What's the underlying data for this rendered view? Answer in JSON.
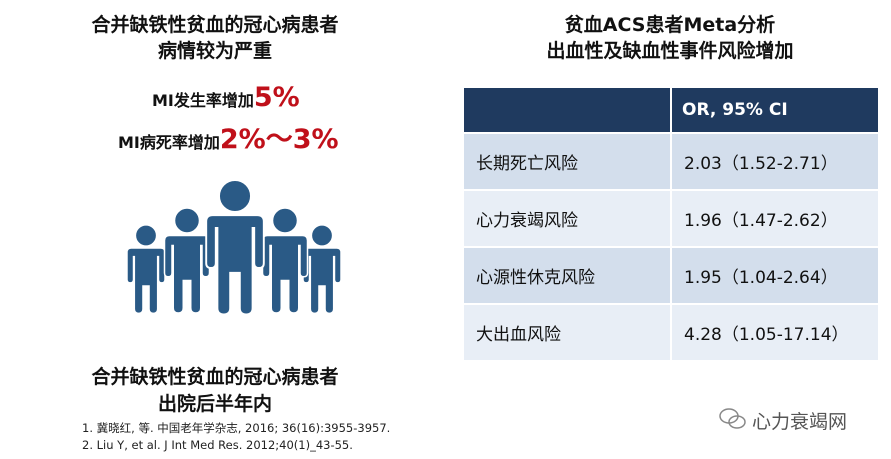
{
  "left": {
    "title": [
      "合并缺铁性贫血的冠心病患者",
      "病情较为严重"
    ],
    "stats": [
      {
        "label": "MI发生率增加",
        "value": "5%"
      },
      {
        "label": "MI病死率增加",
        "value": "2%～3%"
      }
    ],
    "caption": [
      "合并缺铁性贫血的冠心病患者",
      "出院后半年内"
    ],
    "references": [
      "1.   冀晓红, 等. 中国老年学杂志, 2016; 36(16):3955-3957.",
      "2.   Liu Y, et al.  J Int Med Res. 2012;40(1)_43-55."
    ]
  },
  "right": {
    "title": [
      "贫血ACS患者Meta分析",
      "出血性及缺血性事件风险增加"
    ],
    "table": {
      "header": "OR, 95% CI",
      "rows": [
        [
          "长期死亡风险",
          "2.03（1.52-2.71）"
        ],
        [
          "心力衰竭风险",
          "1.96（1.47-2.62）"
        ],
        [
          "心源性休克风险",
          "1.95（1.04-2.64）"
        ],
        [
          "大出血风险",
          "4.28（1.05-17.14）"
        ]
      ]
    }
  },
  "watermark": "心力衰竭网"
}
